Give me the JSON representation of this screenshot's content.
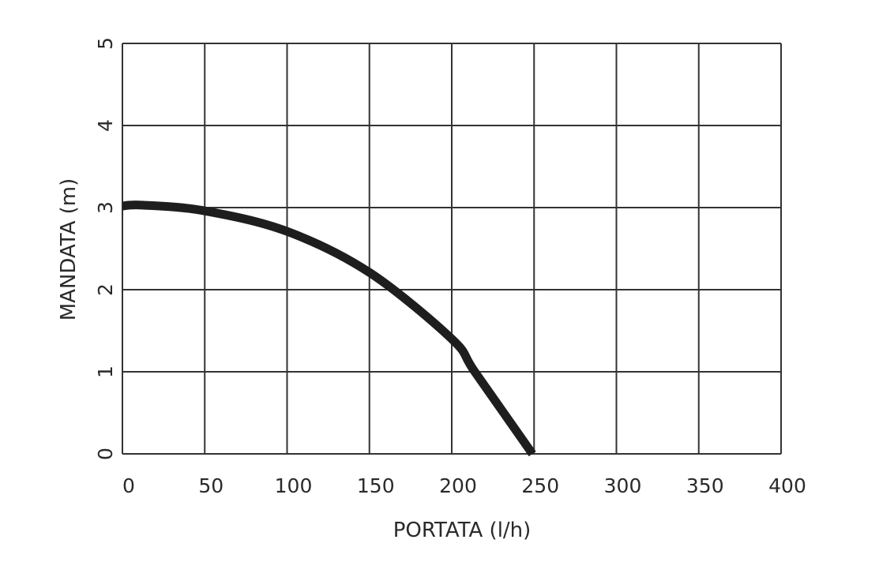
{
  "chart_data": {
    "type": "line",
    "title": "",
    "xlabel": "PORTATA (l/h)",
    "ylabel": "MANDATA (m)",
    "xlim": [
      0,
      400
    ],
    "ylim": [
      0,
      5
    ],
    "x_ticks": [
      "0",
      "50",
      "100",
      "150",
      "200",
      "250",
      "300",
      "350",
      "400"
    ],
    "y_ticks": [
      "0",
      "1",
      "2",
      "3",
      "4",
      "5"
    ],
    "grid": true,
    "series": [
      {
        "color": "#1e1e1e",
        "x": [
          0,
          12,
          50,
          100,
          150,
          200,
          214,
          249
        ],
        "y": [
          3.02,
          3.03,
          2.96,
          2.71,
          2.21,
          1.4,
          1.0,
          0.0
        ]
      }
    ]
  }
}
